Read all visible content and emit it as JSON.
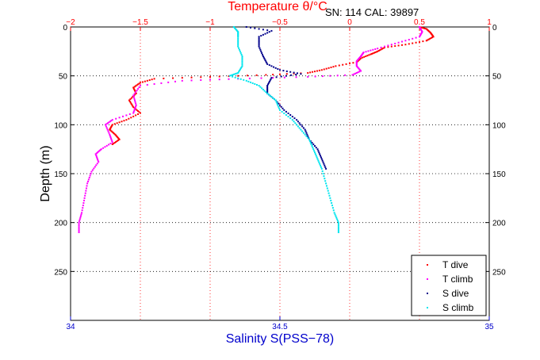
{
  "chart_data": {
    "type": "scatter",
    "title": "Temperature θ/°C",
    "annotation": "SN: 114  CAL: 39897",
    "xlabel": "Salinity S(PSS−78)",
    "ylabel": "Depth (m)",
    "ylim": [
      0,
      300
    ],
    "y_reversed": true,
    "grid": true,
    "legend_position": "bottom-right",
    "x_axis_bottom": {
      "quantity": "Salinity",
      "range": [
        34,
        35
      ],
      "ticks": [
        34,
        34.5,
        35
      ],
      "tick_labels": [
        "34",
        "34.5",
        "35"
      ],
      "color": "#0000cc"
    },
    "x_axis_top": {
      "quantity": "Temperature",
      "range": [
        -2,
        1
      ],
      "ticks": [
        -2,
        -1.5,
        -1,
        -0.5,
        0,
        0.5,
        1
      ],
      "tick_labels": [
        "−2",
        "−1.5",
        "−1",
        "−0.5",
        "0",
        "0.5",
        "1"
      ],
      "color": "#ff0000"
    },
    "y_ticks": [
      0,
      50,
      100,
      150,
      200,
      250
    ],
    "y_tick_labels": [
      "0",
      "50",
      "100",
      "150",
      "200",
      "250"
    ],
    "colors": {
      "temperature_axis": "#ff0000",
      "salinity_axis": "#0000cc",
      "t_dive": "#ff0000",
      "t_climb": "#ff00ff",
      "s_dive": "#00008b",
      "s_climb": "#00e5ee"
    },
    "series": [
      {
        "name": "T dive",
        "axis": "temperature",
        "color": "#ff0000",
        "points": [
          {
            "x": 0.5,
            "y": 0
          },
          {
            "x": 0.55,
            "y": 2
          },
          {
            "x": 0.58,
            "y": 6
          },
          {
            "x": 0.6,
            "y": 10
          },
          {
            "x": 0.55,
            "y": 14
          },
          {
            "x": 0.4,
            "y": 18
          },
          {
            "x": 0.25,
            "y": 21
          },
          {
            "x": 0.2,
            "y": 25
          },
          {
            "x": 0.15,
            "y": 28
          },
          {
            "x": 0.08,
            "y": 32
          },
          {
            "x": 0.05,
            "y": 36
          },
          {
            "x": -0.1,
            "y": 40
          },
          {
            "x": -0.2,
            "y": 44
          },
          {
            "x": -0.3,
            "y": 47
          },
          {
            "x": -0.6,
            "y": 49
          },
          {
            "x": -1.0,
            "y": 51
          },
          {
            "x": -1.4,
            "y": 53
          },
          {
            "x": -1.5,
            "y": 57
          },
          {
            "x": -1.55,
            "y": 62
          },
          {
            "x": -1.53,
            "y": 68
          },
          {
            "x": -1.58,
            "y": 75
          },
          {
            "x": -1.55,
            "y": 82
          },
          {
            "x": -1.5,
            "y": 88
          },
          {
            "x": -1.6,
            "y": 95
          },
          {
            "x": -1.7,
            "y": 100
          },
          {
            "x": -1.72,
            "y": 105
          },
          {
            "x": -1.68,
            "y": 110
          },
          {
            "x": -1.65,
            "y": 115
          },
          {
            "x": -1.7,
            "y": 120
          }
        ]
      },
      {
        "name": "T climb",
        "axis": "temperature",
        "color": "#ff00ff",
        "points": [
          {
            "x": 0.5,
            "y": 0
          },
          {
            "x": 0.52,
            "y": 5
          },
          {
            "x": 0.5,
            "y": 10
          },
          {
            "x": 0.35,
            "y": 16
          },
          {
            "x": 0.2,
            "y": 22
          },
          {
            "x": 0.1,
            "y": 26
          },
          {
            "x": 0.08,
            "y": 30
          },
          {
            "x": 0.05,
            "y": 35
          },
          {
            "x": 0.05,
            "y": 40
          },
          {
            "x": 0.08,
            "y": 45
          },
          {
            "x": 0.02,
            "y": 49
          },
          {
            "x": -0.3,
            "y": 51
          },
          {
            "x": -0.8,
            "y": 53
          },
          {
            "x": -1.2,
            "y": 55
          },
          {
            "x": -1.5,
            "y": 60
          },
          {
            "x": -1.55,
            "y": 70
          },
          {
            "x": -1.53,
            "y": 80
          },
          {
            "x": -1.55,
            "y": 88
          },
          {
            "x": -1.7,
            "y": 95
          },
          {
            "x": -1.75,
            "y": 100
          },
          {
            "x": -1.72,
            "y": 110
          },
          {
            "x": -1.7,
            "y": 118
          },
          {
            "x": -1.78,
            "y": 125
          },
          {
            "x": -1.82,
            "y": 130
          },
          {
            "x": -1.8,
            "y": 138
          },
          {
            "x": -1.85,
            "y": 148
          },
          {
            "x": -1.88,
            "y": 160
          },
          {
            "x": -1.9,
            "y": 175
          },
          {
            "x": -1.92,
            "y": 190
          },
          {
            "x": -1.94,
            "y": 200
          },
          {
            "x": -1.94,
            "y": 210
          }
        ]
      },
      {
        "name": "S dive",
        "axis": "salinity",
        "color": "#00008b",
        "points": [
          {
            "x": 34.42,
            "y": 0
          },
          {
            "x": 34.48,
            "y": 4
          },
          {
            "x": 34.45,
            "y": 10
          },
          {
            "x": 34.45,
            "y": 20
          },
          {
            "x": 34.46,
            "y": 30
          },
          {
            "x": 34.47,
            "y": 38
          },
          {
            "x": 34.5,
            "y": 44
          },
          {
            "x": 34.55,
            "y": 48
          },
          {
            "x": 34.48,
            "y": 52
          },
          {
            "x": 34.47,
            "y": 60
          },
          {
            "x": 34.47,
            "y": 68
          },
          {
            "x": 34.49,
            "y": 75
          },
          {
            "x": 34.51,
            "y": 85
          },
          {
            "x": 34.54,
            "y": 95
          },
          {
            "x": 34.56,
            "y": 105
          },
          {
            "x": 34.57,
            "y": 115
          },
          {
            "x": 34.59,
            "y": 125
          },
          {
            "x": 34.6,
            "y": 135
          },
          {
            "x": 34.61,
            "y": 145
          }
        ]
      },
      {
        "name": "S climb",
        "axis": "salinity",
        "color": "#00e5ee",
        "points": [
          {
            "x": 34.39,
            "y": 0
          },
          {
            "x": 34.4,
            "y": 5
          },
          {
            "x": 34.4,
            "y": 10
          },
          {
            "x": 34.4,
            "y": 20
          },
          {
            "x": 34.41,
            "y": 30
          },
          {
            "x": 34.41,
            "y": 40
          },
          {
            "x": 34.4,
            "y": 47
          },
          {
            "x": 34.38,
            "y": 50
          },
          {
            "x": 34.42,
            "y": 55
          },
          {
            "x": 34.45,
            "y": 60
          },
          {
            "x": 34.47,
            "y": 68
          },
          {
            "x": 34.49,
            "y": 75
          },
          {
            "x": 34.5,
            "y": 85
          },
          {
            "x": 34.53,
            "y": 95
          },
          {
            "x": 34.55,
            "y": 105
          },
          {
            "x": 34.57,
            "y": 115
          },
          {
            "x": 34.58,
            "y": 125
          },
          {
            "x": 34.59,
            "y": 135
          },
          {
            "x": 34.6,
            "y": 145
          },
          {
            "x": 34.61,
            "y": 160
          },
          {
            "x": 34.62,
            "y": 175
          },
          {
            "x": 34.63,
            "y": 190
          },
          {
            "x": 34.64,
            "y": 200
          },
          {
            "x": 34.64,
            "y": 210
          }
        ]
      }
    ]
  }
}
